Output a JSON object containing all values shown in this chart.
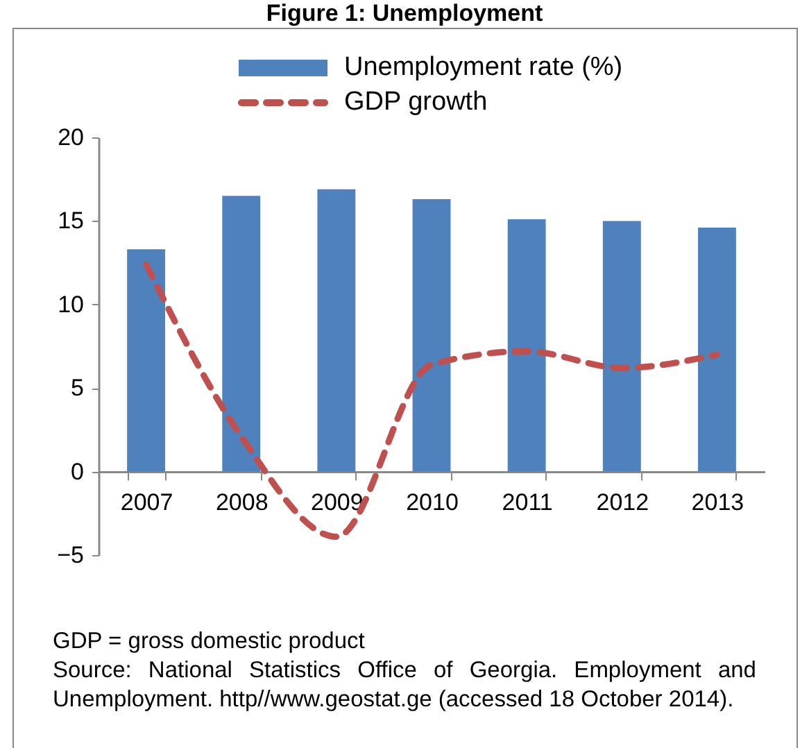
{
  "chart_data": {
    "type": "bar",
    "title": "Figure 1: Unemployment",
    "categories": [
      "2007",
      "2008",
      "2009",
      "2010",
      "2011",
      "2012",
      "2013"
    ],
    "series": [
      {
        "name": "Unemployment rate (%)",
        "color": "#4f81bd",
        "values": [
          13.3,
          16.5,
          16.9,
          16.3,
          15.1,
          15.0,
          14.6
        ]
      },
      {
        "name": "GDP growth",
        "type": "line",
        "color": "#c0504d",
        "line_style": "dashed",
        "values": [
          12.4,
          2.1,
          -3.9,
          6.4,
          7.2,
          6.2,
          7.0
        ]
      }
    ],
    "ylim": [
      -5,
      20
    ],
    "yticks": [
      -5,
      0,
      5,
      10,
      15,
      20
    ],
    "grid": false,
    "legend": "top",
    "annotations": [
      "GDP = gross domestic product",
      "Source: National Statistics Office of Georgia. Employment and Unemployment. http//www.geostat.ge (accessed 18 October 2014)."
    ]
  }
}
